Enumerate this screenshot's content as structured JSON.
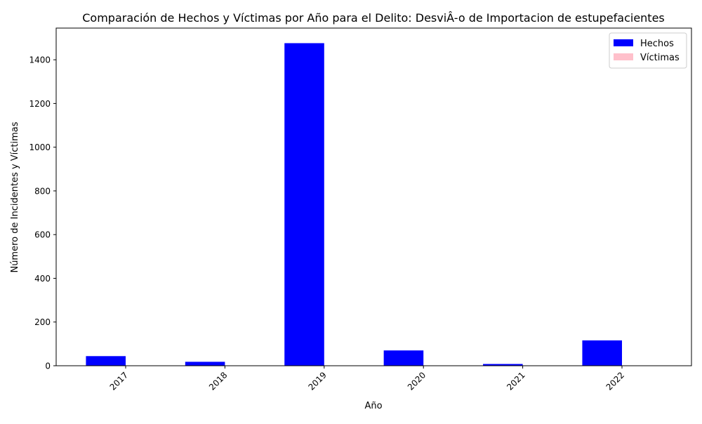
{
  "chart_data": {
    "type": "bar",
    "title": "Comparación de Hechos y Víctimas por Año para el Delito: DesviÂ-o de Importacion de estupefacientes",
    "xlabel": "Año",
    "ylabel": "Número de Incidentes y Víctimas",
    "categories": [
      "2017",
      "2018",
      "2019",
      "2020",
      "2021",
      "2022"
    ],
    "series": [
      {
        "name": "Hechos",
        "color": "#0000ff",
        "values": [
          44,
          18,
          1476,
          70,
          8,
          116
        ]
      },
      {
        "name": "Víctimas",
        "color": "#ffc0cb",
        "values": [
          0,
          0,
          0,
          0,
          0,
          0
        ]
      }
    ],
    "ylim": [
      0,
      1545
    ],
    "yticks": [
      0,
      200,
      400,
      600,
      800,
      1000,
      1200,
      1400
    ],
    "grid": false,
    "legend_position": "top-right",
    "xtick_rotation": 45
  }
}
